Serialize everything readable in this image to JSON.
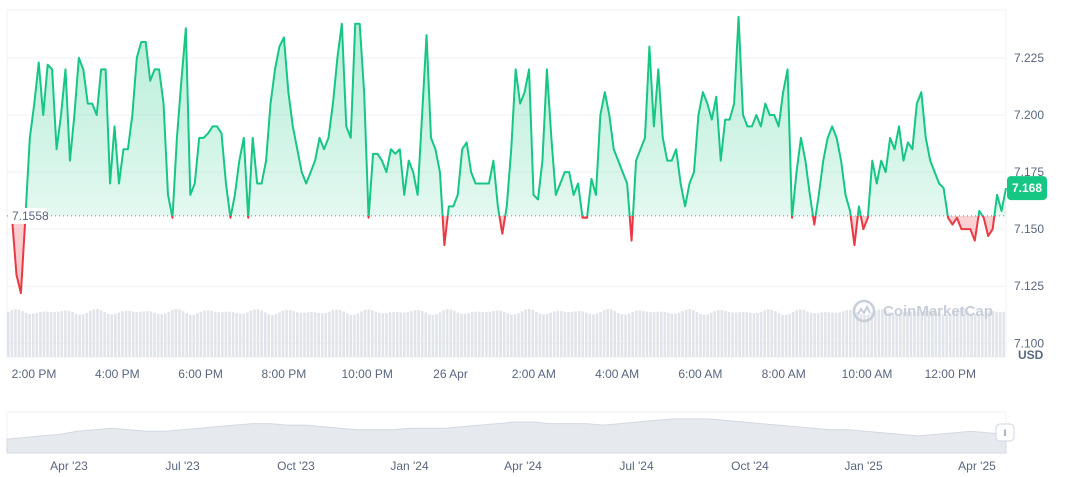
{
  "chart_data": {
    "type": "area",
    "currency_label": "USD",
    "watermark": "CoinMarketCap",
    "reference_price": "7.1558",
    "current_price": "7.168",
    "ylim": [
      7.094,
      7.246
    ],
    "y_ticks": [
      {
        "value": 7.225,
        "label": "7.225"
      },
      {
        "value": 7.2,
        "label": "7.200"
      },
      {
        "value": 7.175,
        "label": "7.175"
      },
      {
        "value": 7.15,
        "label": "7.150"
      },
      {
        "value": 7.125,
        "label": "7.125"
      },
      {
        "value": 7.1,
        "label": "7.100"
      }
    ],
    "x_tick_labels": [
      "2:00 PM",
      "4:00 PM",
      "6:00 PM",
      "8:00 PM",
      "10:00 PM",
      "26 Apr",
      "2:00 AM",
      "4:00 AM",
      "6:00 AM",
      "8:00 AM",
      "10:00 AM",
      "12:00 PM"
    ],
    "reference_value": 7.1558,
    "series": [
      {
        "values": [
          7.155,
          7.13,
          7.122,
          7.155,
          7.19,
          7.205,
          7.223,
          7.2,
          7.222,
          7.22,
          7.185,
          7.2,
          7.22,
          7.18,
          7.2,
          7.225,
          7.22,
          7.205,
          7.205,
          7.2,
          7.22,
          7.22,
          7.17,
          7.195,
          7.17,
          7.185,
          7.185,
          7.2,
          7.225,
          7.232,
          7.232,
          7.215,
          7.22,
          7.22,
          7.205,
          7.165,
          7.155,
          7.19,
          7.215,
          7.238,
          7.165,
          7.17,
          7.19,
          7.19,
          7.192,
          7.195,
          7.195,
          7.192,
          7.17,
          7.155,
          7.165,
          7.18,
          7.19,
          7.155,
          7.19,
          7.17,
          7.17,
          7.18,
          7.205,
          7.22,
          7.23,
          7.234,
          7.21,
          7.195,
          7.185,
          7.175,
          7.17,
          7.175,
          7.18,
          7.19,
          7.185,
          7.19,
          7.205,
          7.225,
          7.24,
          7.195,
          7.19,
          7.24,
          7.24,
          7.21,
          7.155,
          7.183,
          7.183,
          7.18,
          7.175,
          7.185,
          7.183,
          7.185,
          7.165,
          7.18,
          7.175,
          7.165,
          7.2,
          7.235,
          7.19,
          7.185,
          7.175,
          7.143,
          7.16,
          7.16,
          7.165,
          7.185,
          7.188,
          7.175,
          7.17,
          7.17,
          7.17,
          7.17,
          7.18,
          7.16,
          7.148,
          7.16,
          7.185,
          7.22,
          7.205,
          7.21,
          7.22,
          7.165,
          7.163,
          7.18,
          7.22,
          7.19,
          7.165,
          7.17,
          7.175,
          7.175,
          7.165,
          7.17,
          7.155,
          7.155,
          7.172,
          7.165,
          7.2,
          7.21,
          7.2,
          7.185,
          7.18,
          7.175,
          7.17,
          7.145,
          7.18,
          7.185,
          7.19,
          7.23,
          7.195,
          7.22,
          7.19,
          7.18,
          7.18,
          7.185,
          7.17,
          7.16,
          7.17,
          7.175,
          7.2,
          7.21,
          7.205,
          7.198,
          7.208,
          7.18,
          7.198,
          7.198,
          7.205,
          7.243,
          7.2,
          7.195,
          7.195,
          7.2,
          7.195,
          7.205,
          7.2,
          7.2,
          7.195,
          7.21,
          7.22,
          7.155,
          7.175,
          7.19,
          7.18,
          7.165,
          7.152,
          7.165,
          7.18,
          7.19,
          7.195,
          7.19,
          7.18,
          7.165,
          7.158,
          7.143,
          7.16,
          7.15,
          7.155,
          7.18,
          7.17,
          7.18,
          7.175,
          7.19,
          7.185,
          7.195,
          7.18,
          7.188,
          7.185,
          7.205,
          7.21,
          7.19,
          7.18,
          7.175,
          7.17,
          7.168,
          7.155,
          7.152,
          7.155,
          7.15,
          7.15,
          7.15,
          7.145,
          7.158,
          7.155,
          7.147,
          7.15,
          7.165,
          7.158,
          7.168
        ]
      }
    ],
    "overview_x_labels": [
      "Apr '23",
      "Jul '23",
      "Oct '23",
      "Jan '24",
      "Apr '24",
      "Jul '24",
      "Oct '24",
      "Jan '25",
      "Apr '25"
    ],
    "overview_values": [
      0.45,
      0.5,
      0.55,
      0.6,
      0.7,
      0.75,
      0.8,
      0.75,
      0.7,
      0.7,
      0.75,
      0.8,
      0.85,
      0.9,
      0.95,
      0.95,
      0.9,
      0.9,
      0.85,
      0.8,
      0.75,
      0.75,
      0.75,
      0.8,
      0.8,
      0.8,
      0.85,
      0.9,
      0.95,
      1.0,
      1.0,
      0.95,
      0.95,
      0.95,
      0.9,
      0.95,
      1.0,
      1.05,
      1.1,
      1.1,
      1.1,
      1.05,
      1.0,
      0.95,
      0.9,
      0.85,
      0.8,
      0.75,
      0.75,
      0.7,
      0.65,
      0.6,
      0.55,
      0.6,
      0.65,
      0.7,
      0.65,
      0.6
    ]
  },
  "colors": {
    "up": "#16c784",
    "down": "#ea3943",
    "price_badge": "#16c784",
    "text": "#58667e"
  }
}
